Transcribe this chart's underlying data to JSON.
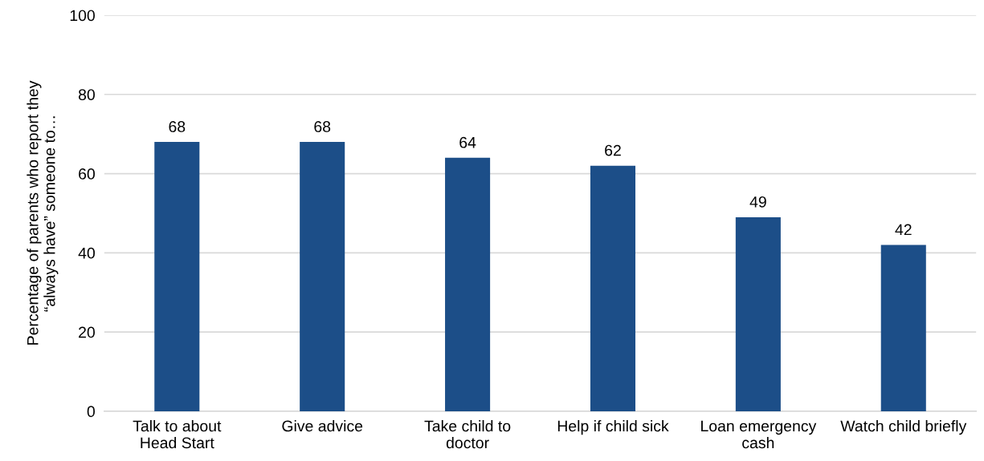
{
  "chart_data": {
    "type": "bar",
    "ylabel": "Percentage of parents who report they\n“always have” someone to…",
    "categories": [
      "Talk to about\nHead Start",
      "Give advice",
      "Take child to\ndoctor",
      "Help if child sick",
      "Loan emergency\ncash",
      "Watch child briefly"
    ],
    "values": [
      68,
      68,
      64,
      62,
      49,
      42
    ],
    "color": "#1c4e88",
    "ylim": [
      0,
      100
    ],
    "yticks": [
      0,
      20,
      40,
      60,
      80,
      100
    ],
    "grid": "y",
    "data_labels": true
  }
}
